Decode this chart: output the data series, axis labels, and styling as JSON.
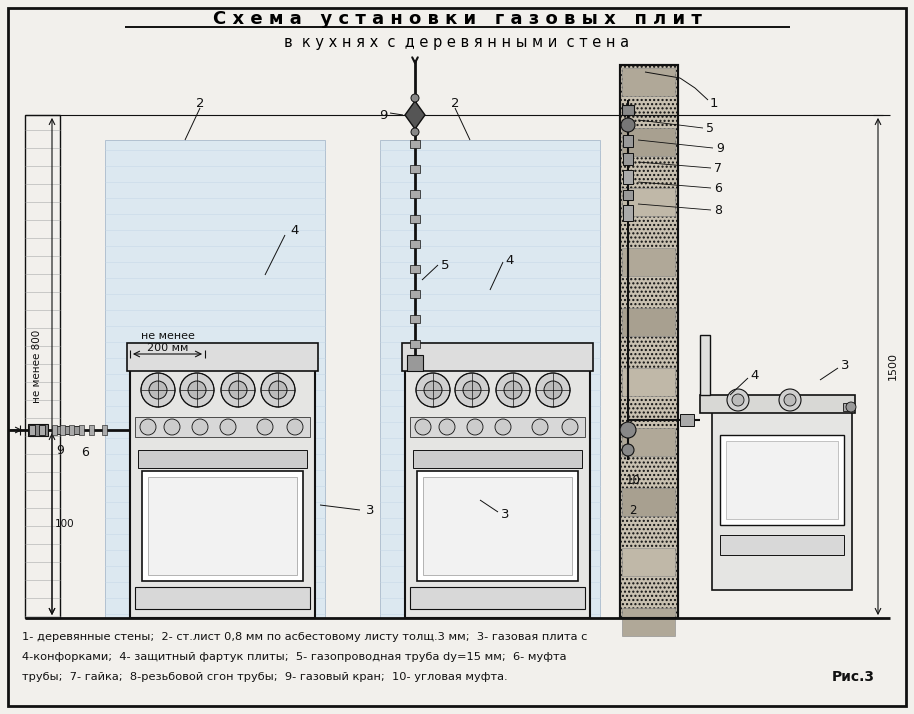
{
  "title_line1": "С х е м а   у с т а н о в к и   г а з о в ы х   п л и т",
  "title_line2": "в  к у х н я х  с  д е р е в я н н ы м и  с т е н а",
  "caption_line1": "1- деревянные стены;  2- ст.лист 0,8 мм по асбестовому листу толщ.3 мм;  3- газовая плита с",
  "caption_line2": "4-конфорками;  4- защитный фартук плиты;  5- газопроводная труба dy=15 мм;  6- муфта",
  "caption_line3": "трубы;  7- гайка;  8-резьбовой сгон трубы;  9- газовый кран;  10- угловая муфта.",
  "fig_label": "Рис.3",
  "bg_color": "#f2f0ec",
  "shield_color": "#dce8f0",
  "wall_hatch_color": "#b8b0a0",
  "line_color": "#111111"
}
